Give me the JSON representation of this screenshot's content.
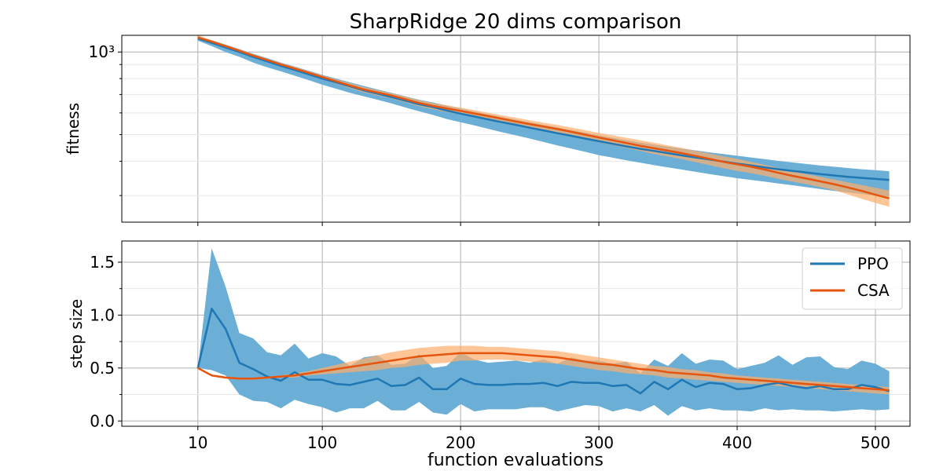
{
  "title": "SharpRidge 20 dims comparison",
  "xlabel": "function evaluations",
  "colors": {
    "PPO": "#1f77b4",
    "CSA": "#e6550d",
    "PPO_band": "#6baed6",
    "CSA_band": "#fdae6b"
  },
  "chart_data": [
    {
      "type": "line",
      "ylabel": "fitness",
      "yscale": "log",
      "ylim": [
        240,
        1150
      ],
      "major_yticks": [
        1000
      ],
      "major_ytick_labels": [
        "10³"
      ],
      "minor_yticks": [
        300,
        400,
        500,
        600,
        700,
        800,
        900
      ],
      "xlim": [
        -45,
        525
      ],
      "xticks": [
        10,
        100,
        200,
        300,
        400,
        500
      ],
      "grid": true,
      "x": [
        10,
        20,
        30,
        40,
        50,
        60,
        70,
        80,
        90,
        100,
        110,
        120,
        130,
        140,
        150,
        160,
        170,
        180,
        190,
        200,
        210,
        220,
        230,
        240,
        250,
        260,
        270,
        280,
        290,
        300,
        310,
        320,
        330,
        340,
        350,
        360,
        370,
        380,
        390,
        400,
        410,
        420,
        430,
        440,
        450,
        460,
        470,
        480,
        490,
        500,
        510
      ],
      "series": [
        {
          "name": "PPO",
          "values": [
            1120,
            1080,
            1040,
            1000,
            960,
            925,
            890,
            860,
            830,
            800,
            775,
            750,
            725,
            705,
            685,
            665,
            645,
            630,
            612,
            596,
            582,
            568,
            555,
            543,
            530,
            518,
            506,
            495,
            484,
            473,
            463,
            453,
            444,
            436,
            428,
            420,
            413,
            406,
            399,
            392,
            386,
            380,
            374,
            369,
            364,
            359,
            355,
            351,
            348,
            345,
            342
          ],
          "band_upper": [
            1140,
            1105,
            1065,
            1025,
            985,
            950,
            915,
            885,
            855,
            825,
            800,
            775,
            752,
            730,
            710,
            690,
            670,
            655,
            638,
            622,
            607,
            593,
            580,
            567,
            555,
            543,
            531,
            519,
            508,
            497,
            487,
            477,
            468,
            460,
            452,
            445,
            438,
            431,
            425,
            419,
            413,
            407,
            401,
            396,
            391,
            386,
            382,
            378,
            374,
            371,
            368
          ],
          "band_lower": [
            1100,
            1050,
            1000,
            960,
            915,
            880,
            850,
            820,
            790,
            760,
            735,
            710,
            690,
            670,
            650,
            628,
            608,
            590,
            570,
            555,
            540,
            525,
            510,
            497,
            484,
            470,
            457,
            445,
            433,
            421,
            412,
            403,
            395,
            387,
            380,
            373,
            366,
            359,
            353,
            347,
            342,
            337,
            332,
            327,
            322,
            317,
            312,
            308,
            304,
            300,
            297
          ]
        },
        {
          "name": "CSA",
          "values": [
            1130,
            1090,
            1050,
            1010,
            970,
            935,
            900,
            870,
            840,
            810,
            782,
            755,
            730,
            712,
            694,
            673,
            652,
            636,
            623,
            610,
            597,
            584,
            571,
            558,
            546,
            535,
            524,
            512,
            500,
            488,
            477,
            466,
            455,
            446,
            437,
            428,
            418,
            408,
            398,
            390,
            382,
            373,
            363,
            354,
            346,
            338,
            330,
            321,
            312,
            302,
            293
          ],
          "band_upper": [
            1150,
            1105,
            1062,
            1022,
            982,
            946,
            912,
            882,
            852,
            822,
            795,
            770,
            745,
            726,
            708,
            688,
            668,
            652,
            640,
            627,
            614,
            601,
            588,
            576,
            564,
            553,
            542,
            531,
            519,
            507,
            497,
            487,
            477,
            467,
            457,
            447,
            437,
            427,
            417,
            408,
            398,
            388,
            378,
            368,
            359,
            351,
            343,
            335,
            328,
            320,
            313
          ],
          "band_lower": [
            1110,
            1070,
            1035,
            995,
            955,
            920,
            885,
            855,
            825,
            795,
            766,
            738,
            713,
            695,
            677,
            656,
            635,
            618,
            605,
            592,
            579,
            566,
            553,
            540,
            527,
            515,
            505,
            493,
            481,
            469,
            458,
            447,
            436,
            425,
            416,
            407,
            397,
            387,
            377,
            369,
            362,
            354,
            345,
            337,
            330,
            322,
            314,
            303,
            292,
            282,
            273
          ]
        }
      ]
    },
    {
      "type": "line",
      "ylabel": "step size",
      "ylim": [
        -0.05,
        1.7
      ],
      "yticks": [
        0.0,
        0.5,
        1.0,
        1.5
      ],
      "ytick_labels": [
        "0.0",
        "0.5",
        "1.0",
        "1.5"
      ],
      "minor_yticks": [
        0.25,
        0.75,
        1.25
      ],
      "xlim": [
        -45,
        525
      ],
      "xticks": [
        10,
        100,
        200,
        300,
        400,
        500
      ],
      "xtick_labels": [
        "10",
        "100",
        "200",
        "300",
        "400",
        "500"
      ],
      "grid": true,
      "legend": "top-right",
      "x": [
        10,
        20,
        30,
        40,
        50,
        60,
        70,
        80,
        90,
        100,
        110,
        120,
        130,
        140,
        150,
        160,
        170,
        180,
        190,
        200,
        210,
        220,
        230,
        240,
        250,
        260,
        270,
        280,
        290,
        300,
        310,
        320,
        330,
        340,
        350,
        360,
        370,
        380,
        390,
        400,
        410,
        420,
        430,
        440,
        450,
        460,
        470,
        480,
        490,
        500,
        510
      ],
      "series": [
        {
          "name": "PPO",
          "values": [
            0.5,
            1.06,
            0.87,
            0.55,
            0.49,
            0.42,
            0.38,
            0.46,
            0.39,
            0.39,
            0.35,
            0.34,
            0.37,
            0.4,
            0.33,
            0.34,
            0.41,
            0.3,
            0.3,
            0.4,
            0.35,
            0.34,
            0.34,
            0.35,
            0.35,
            0.36,
            0.33,
            0.37,
            0.36,
            0.36,
            0.33,
            0.34,
            0.26,
            0.37,
            0.3,
            0.39,
            0.32,
            0.36,
            0.35,
            0.3,
            0.31,
            0.34,
            0.36,
            0.33,
            0.31,
            0.33,
            0.3,
            0.3,
            0.34,
            0.32,
            0.28
          ],
          "band_upper": [
            0.5,
            1.63,
            1.27,
            0.83,
            0.78,
            0.65,
            0.62,
            0.73,
            0.59,
            0.64,
            0.61,
            0.52,
            0.6,
            0.62,
            0.53,
            0.54,
            0.63,
            0.5,
            0.52,
            0.65,
            0.58,
            0.55,
            0.56,
            0.57,
            0.55,
            0.58,
            0.54,
            0.6,
            0.57,
            0.57,
            0.54,
            0.56,
            0.45,
            0.58,
            0.52,
            0.64,
            0.54,
            0.58,
            0.57,
            0.49,
            0.52,
            0.55,
            0.62,
            0.53,
            0.6,
            0.61,
            0.51,
            0.49,
            0.57,
            0.54,
            0.47
          ],
          "band_lower": [
            0.5,
            0.48,
            0.43,
            0.25,
            0.19,
            0.18,
            0.12,
            0.2,
            0.16,
            0.13,
            0.08,
            0.12,
            0.12,
            0.19,
            0.1,
            0.1,
            0.18,
            0.08,
            0.06,
            0.16,
            0.09,
            0.11,
            0.11,
            0.11,
            0.13,
            0.13,
            0.09,
            0.12,
            0.15,
            0.14,
            0.09,
            0.12,
            0.09,
            0.15,
            0.05,
            0.14,
            0.1,
            0.12,
            0.1,
            0.1,
            0.09,
            0.12,
            0.1,
            0.11,
            0.1,
            0.1,
            0.09,
            0.1,
            0.11,
            0.1,
            0.11
          ]
        },
        {
          "name": "CSA",
          "values": [
            0.5,
            0.43,
            0.41,
            0.4,
            0.4,
            0.41,
            0.42,
            0.43,
            0.45,
            0.47,
            0.49,
            0.51,
            0.53,
            0.55,
            0.57,
            0.59,
            0.61,
            0.62,
            0.63,
            0.64,
            0.64,
            0.64,
            0.64,
            0.63,
            0.62,
            0.61,
            0.6,
            0.58,
            0.56,
            0.54,
            0.53,
            0.51,
            0.49,
            0.48,
            0.46,
            0.45,
            0.44,
            0.43,
            0.41,
            0.4,
            0.39,
            0.38,
            0.37,
            0.36,
            0.35,
            0.34,
            0.33,
            0.32,
            0.31,
            0.3,
            0.29
          ],
          "band_upper": [
            0.5,
            0.44,
            0.42,
            0.41,
            0.41,
            0.42,
            0.43,
            0.45,
            0.47,
            0.5,
            0.53,
            0.56,
            0.59,
            0.62,
            0.65,
            0.67,
            0.69,
            0.7,
            0.71,
            0.71,
            0.71,
            0.7,
            0.7,
            0.69,
            0.68,
            0.67,
            0.66,
            0.64,
            0.62,
            0.6,
            0.58,
            0.56,
            0.54,
            0.52,
            0.51,
            0.49,
            0.48,
            0.46,
            0.45,
            0.43,
            0.42,
            0.41,
            0.4,
            0.39,
            0.38,
            0.37,
            0.36,
            0.35,
            0.34,
            0.33,
            0.32
          ],
          "band_lower": [
            0.5,
            0.42,
            0.4,
            0.39,
            0.39,
            0.4,
            0.41,
            0.41,
            0.43,
            0.44,
            0.45,
            0.46,
            0.47,
            0.48,
            0.5,
            0.51,
            0.53,
            0.54,
            0.55,
            0.57,
            0.57,
            0.58,
            0.58,
            0.57,
            0.56,
            0.55,
            0.54,
            0.52,
            0.5,
            0.48,
            0.47,
            0.45,
            0.44,
            0.43,
            0.41,
            0.4,
            0.39,
            0.38,
            0.37,
            0.36,
            0.35,
            0.34,
            0.33,
            0.32,
            0.31,
            0.3,
            0.29,
            0.28,
            0.27,
            0.26,
            0.25
          ]
        }
      ]
    }
  ]
}
